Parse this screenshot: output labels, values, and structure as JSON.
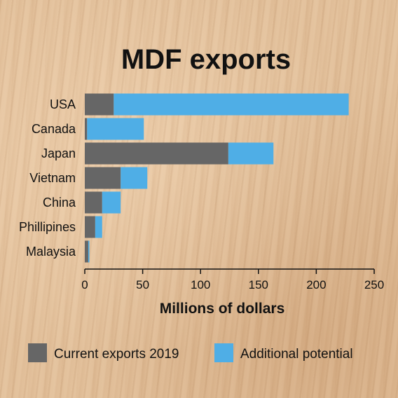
{
  "chart_data": {
    "type": "bar",
    "orientation": "horizontal",
    "stacked": true,
    "title": "MDF exports",
    "xlabel": "Millions of dollars",
    "ylabel": "",
    "categories": [
      "USA",
      "Canada",
      "Japan",
      "Vietnam",
      "China",
      "Phillipines",
      "Malaysia"
    ],
    "series": [
      {
        "name": "Current exports 2019",
        "color": "#666666",
        "values": [
          25,
          2,
          124,
          31,
          15,
          9,
          3
        ]
      },
      {
        "name": "Additional potential",
        "color": "#4faee6",
        "values": [
          203,
          49,
          39,
          23,
          16,
          6,
          1
        ]
      }
    ],
    "xlim": [
      0,
      250
    ],
    "xticks": [
      0,
      50,
      100,
      150,
      200,
      250
    ],
    "grid": false,
    "legend": "bottom"
  }
}
